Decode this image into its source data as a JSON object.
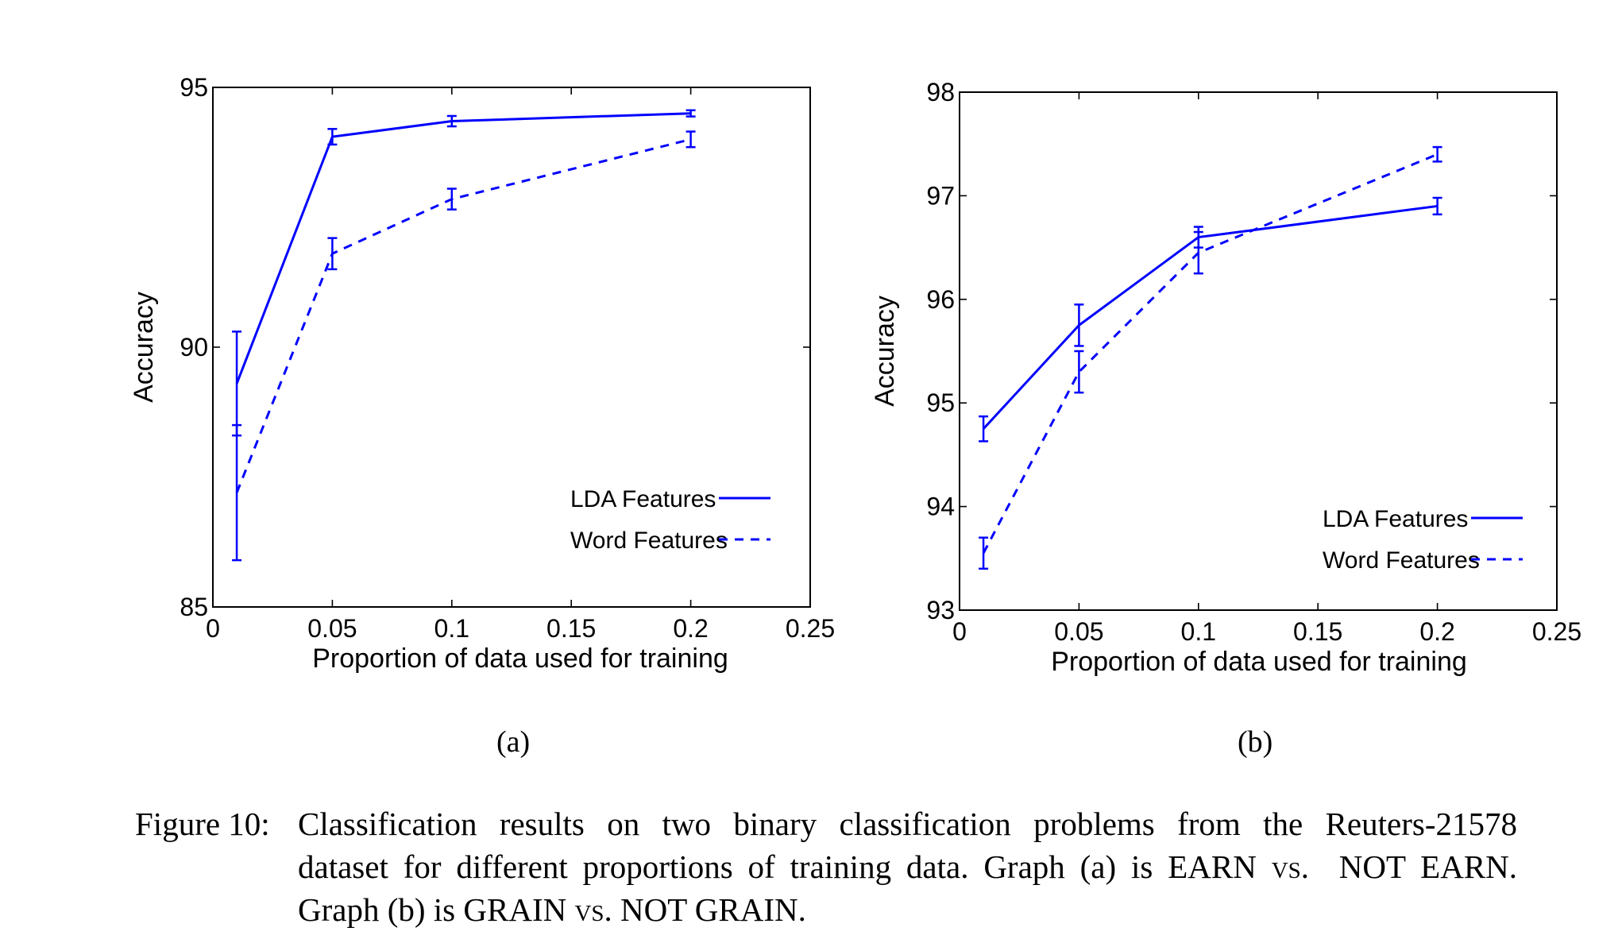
{
  "chart_data": [
    {
      "type": "line",
      "panel_label": "(a)",
      "xlabel": "Proportion of data used for training",
      "ylabel": "Accuracy",
      "xlim": [
        0,
        0.25
      ],
      "ylim": [
        85,
        95
      ],
      "xticks": [
        0,
        0.05,
        0.1,
        0.15,
        0.2,
        0.25
      ],
      "xtick_labels": [
        "0",
        "0.05",
        "0.1",
        "0.15",
        "0.2",
        "0.25"
      ],
      "yticks": [
        85,
        90,
        95
      ],
      "ytick_labels": [
        "85",
        "90",
        "95"
      ],
      "legend_position": "lower-right",
      "series": [
        {
          "name": "LDA Features",
          "style": "solid",
          "color": "#0000ff",
          "x": [
            0.01,
            0.05,
            0.1,
            0.2
          ],
          "y": [
            89.3,
            94.05,
            94.35,
            94.5
          ],
          "err": [
            1.0,
            0.15,
            0.1,
            0.06
          ]
        },
        {
          "name": "Word Features",
          "style": "dashed",
          "color": "#0000ff",
          "x": [
            0.01,
            0.05,
            0.1,
            0.2
          ],
          "y": [
            87.2,
            91.8,
            92.85,
            94.0
          ],
          "err": [
            1.3,
            0.3,
            0.2,
            0.15
          ]
        }
      ]
    },
    {
      "type": "line",
      "panel_label": "(b)",
      "xlabel": "Proportion of data used for training",
      "ylabel": "Accuracy",
      "xlim": [
        0,
        0.25
      ],
      "ylim": [
        93,
        98
      ],
      "xticks": [
        0,
        0.05,
        0.1,
        0.15,
        0.2,
        0.25
      ],
      "xtick_labels": [
        "0",
        "0.05",
        "0.1",
        "0.15",
        "0.2",
        "0.25"
      ],
      "yticks": [
        93,
        94,
        95,
        96,
        97,
        98
      ],
      "ytick_labels": [
        "93",
        "94",
        "95",
        "96",
        "97",
        "98"
      ],
      "legend_position": "lower-right",
      "series": [
        {
          "name": "LDA Features",
          "style": "solid",
          "color": "#0000ff",
          "x": [
            0.01,
            0.05,
            0.1,
            0.2
          ],
          "y": [
            94.75,
            95.75,
            96.6,
            96.9
          ],
          "err": [
            0.12,
            0.2,
            0.1,
            0.08
          ]
        },
        {
          "name": "Word Features",
          "style": "dashed",
          "color": "#0000ff",
          "x": [
            0.01,
            0.05,
            0.1,
            0.2
          ],
          "y": [
            93.55,
            95.3,
            96.45,
            97.4
          ],
          "err": [
            0.15,
            0.2,
            0.2,
            0.07
          ]
        }
      ]
    }
  ],
  "caption": {
    "label": "Figure 10:",
    "line1": "Classification results on two binary classification problems from the Reuters-21578",
    "line2_a": "dataset for different proportions of training data.  Graph (a) is ",
    "line2_earn": "EARN",
    "line2_vs": "vs.",
    "line2_notearn": "NOT EARN",
    "line2_end": ".",
    "line3_a": "Graph (b) is ",
    "line3_grain": "GRAIN",
    "line3_vs": "vs.",
    "line3_notgrain": "NOT GRAIN",
    "line3_end": "."
  }
}
